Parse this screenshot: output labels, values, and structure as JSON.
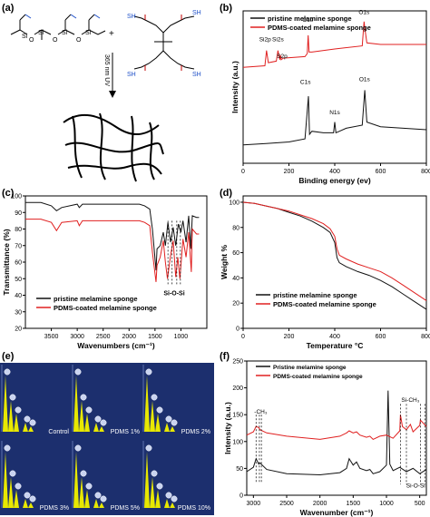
{
  "panels": {
    "a": {
      "label": "(a)",
      "chem": {
        "atoms": [
          "Si",
          "O",
          "Si",
          "O",
          "Si",
          "O",
          "Si"
        ],
        "plus": "+",
        "thiol_groups": [
          "SH",
          "SH",
          "SH",
          "SH"
        ],
        "uv_label": "365 nm UV"
      }
    },
    "b": {
      "label": "(b)"
    },
    "c": {
      "label": "(c)"
    },
    "d": {
      "label": "(d)"
    },
    "e": {
      "label": "(e)",
      "tiles": [
        "Control",
        "PDMS 1%",
        "PDMS 2%",
        "PDMS 3%",
        "PDMS 5%",
        "PDMS 10%"
      ]
    },
    "f": {
      "label": "(f)"
    }
  },
  "colors": {
    "black_series": "#111111",
    "red_series": "#e02020",
    "eds_bg": "#1c2f6e",
    "eds_peak": "#e8e800"
  },
  "chart_data": [
    {
      "id": "b",
      "type": "line",
      "xlabel": "Binding energy (ev)",
      "ylabel": "Intensity (a.u.)",
      "xlim": [
        0,
        800
      ],
      "ylim": [
        0,
        10
      ],
      "xticks": [
        "0",
        "200",
        "400",
        "600",
        "800"
      ],
      "legend": [
        "pristine melamine sponge",
        "PDMS-coated melamine sponge"
      ],
      "annotations": {
        "red": [
          "Si2p",
          "Si2s",
          "S2p",
          "C1s",
          "O1s"
        ],
        "black": [
          "C1s",
          "N1s",
          "O1s"
        ]
      },
      "series": [
        {
          "name": "pristine melamine sponge",
          "color": "#111111",
          "x": [
            0,
            100,
            200,
            270,
            285,
            290,
            300,
            350,
            395,
            400,
            405,
            450,
            520,
            531,
            540,
            600,
            700,
            800
          ],
          "y": [
            1.2,
            1.3,
            1.4,
            1.6,
            4.4,
            1.9,
            2.1,
            2.0,
            2.0,
            2.7,
            2.0,
            2.3,
            2.5,
            4.8,
            2.7,
            2.4,
            2.3,
            2.2
          ]
        },
        {
          "name": "PDMS-coated melamine sponge",
          "color": "#e02020",
          "x": [
            0,
            95,
            102,
            110,
            145,
            152,
            160,
            163,
            166,
            175,
            270,
            280,
            284,
            288,
            300,
            400,
            520,
            528,
            532,
            540,
            600,
            700,
            800
          ],
          "y": [
            6.3,
            6.4,
            7.4,
            6.6,
            6.7,
            7.4,
            6.8,
            7.1,
            6.8,
            6.9,
            7.0,
            7.2,
            8.4,
            7.3,
            7.3,
            7.5,
            7.7,
            9.3,
            8.8,
            7.9,
            7.8,
            7.8,
            7.8
          ]
        }
      ]
    },
    {
      "id": "c",
      "type": "line",
      "xlabel": "Wavenumbers (cm⁻¹)",
      "ylabel": "Transmittance (%)",
      "xlim": [
        4000,
        500
      ],
      "ylim": [
        20,
        100
      ],
      "yticks": [
        "20",
        "30",
        "40",
        "50",
        "60",
        "70",
        "80",
        "90",
        "100"
      ],
      "xticks": [
        "3500",
        "3000",
        "2500",
        "2000",
        "1500",
        "1000"
      ],
      "annotation": "Si-O-Si",
      "legend": [
        "pristine melamine sponge",
        "PDMS-coated melamine sponge"
      ],
      "series": [
        {
          "name": "pristine melamine sponge",
          "color": "#111111",
          "x": [
            4000,
            3700,
            3500,
            3400,
            3300,
            3000,
            2960,
            2900,
            2500,
            2000,
            1800,
            1700,
            1600,
            1550,
            1480,
            1460,
            1400,
            1340,
            1300,
            1250,
            1200,
            1150,
            1100,
            1050,
            1000,
            960,
            900,
            850,
            810,
            780,
            700,
            650
          ],
          "y": [
            96,
            96,
            94,
            91,
            93,
            95,
            93,
            95,
            95,
            95,
            95,
            94,
            92,
            80,
            55,
            68,
            70,
            78,
            70,
            84,
            72,
            81,
            70,
            83,
            78,
            85,
            72,
            88,
            68,
            88,
            87,
            87
          ]
        },
        {
          "name": "PDMS-coated melamine sponge",
          "color": "#e02020",
          "x": [
            4000,
            3700,
            3500,
            3400,
            3300,
            3000,
            2960,
            2900,
            2500,
            2000,
            1800,
            1700,
            1600,
            1550,
            1480,
            1460,
            1400,
            1340,
            1300,
            1260,
            1200,
            1150,
            1100,
            1060,
            1020,
            960,
            900,
            850,
            800,
            780,
            700,
            650
          ],
          "y": [
            86,
            86,
            84,
            79,
            84,
            85,
            82,
            85,
            85,
            85,
            85,
            84,
            82,
            66,
            48,
            58,
            63,
            73,
            60,
            50,
            64,
            73,
            51,
            63,
            50,
            74,
            63,
            78,
            54,
            80,
            77,
            77
          ]
        }
      ]
    },
    {
      "id": "d",
      "type": "line",
      "xlabel": "Temperature °C",
      "ylabel": "Weight %",
      "xlim": [
        0,
        800
      ],
      "ylim": [
        0,
        105
      ],
      "yticks": [
        "0",
        "20",
        "40",
        "60",
        "80",
        "100"
      ],
      "xticks": [
        "0",
        "200",
        "400",
        "600",
        "800"
      ],
      "legend": [
        "pristine   melamine sponge",
        "PDMS-coated melamine sponge"
      ],
      "series": [
        {
          "name": "pristine   melamine sponge",
          "color": "#111111",
          "x": [
            0,
            50,
            100,
            150,
            200,
            250,
            300,
            350,
            380,
            400,
            410,
            420,
            450,
            500,
            550,
            600,
            650,
            700,
            750,
            800
          ],
          "y": [
            100,
            99,
            97,
            95,
            92,
            89,
            85,
            80,
            76,
            68,
            56,
            52,
            49,
            45,
            42,
            38,
            33,
            27,
            21,
            15
          ]
        },
        {
          "name": "PDMS-coated melamine sponge",
          "color": "#e02020",
          "x": [
            0,
            50,
            100,
            150,
            200,
            250,
            300,
            350,
            380,
            400,
            410,
            420,
            450,
            500,
            550,
            600,
            650,
            700,
            750,
            800
          ],
          "y": [
            100,
            99,
            97,
            95,
            93,
            90,
            87,
            83,
            79,
            73,
            63,
            58,
            55,
            51,
            48,
            45,
            40,
            34,
            28,
            22
          ]
        }
      ]
    },
    {
      "id": "f",
      "type": "line",
      "xlabel": "Wavenumber (cm⁻¹)",
      "ylabel": "Intensity (a.u.)",
      "xlim": [
        3100,
        400
      ],
      "ylim": [
        0,
        250
      ],
      "yticks": [
        "0",
        "50",
        "100",
        "150",
        "200",
        "250"
      ],
      "xticks": [
        "3000",
        "2500",
        "2000",
        "1500",
        "1000",
        "500"
      ],
      "annotations": [
        "-CH₃",
        "Si-CH₃",
        "Si-O-Si"
      ],
      "legend": [
        "Pristine melamine sponge",
        "PDMS-coated melamine sponge"
      ],
      "series": [
        {
          "name": "Pristine melamine sponge",
          "color": "#111111",
          "x": [
            3100,
            3000,
            2960,
            2920,
            2900,
            2800,
            2500,
            2000,
            1700,
            1600,
            1560,
            1500,
            1450,
            1400,
            1300,
            1250,
            1200,
            1100,
            1000,
            975,
            950,
            900,
            800,
            700,
            600,
            500,
            400
          ],
          "y": [
            44,
            52,
            68,
            58,
            60,
            48,
            40,
            38,
            42,
            50,
            68,
            56,
            62,
            50,
            46,
            48,
            40,
            44,
            56,
            195,
            58,
            46,
            52,
            44,
            50,
            40,
            48
          ]
        },
        {
          "name": "PDMS-coated melamine sponge",
          "color": "#e02020",
          "x": [
            3100,
            3000,
            2960,
            2920,
            2900,
            2800,
            2500,
            2000,
            1700,
            1600,
            1560,
            1500,
            1450,
            1400,
            1300,
            1250,
            1200,
            1100,
            1000,
            900,
            800,
            790,
            760,
            700,
            640,
            600,
            500,
            490,
            400
          ],
          "y": [
            112,
            118,
            128,
            126,
            122,
            116,
            110,
            104,
            110,
            116,
            120,
            116,
            118,
            112,
            108,
            110,
            104,
            110,
            112,
            106,
            120,
            150,
            128,
            122,
            132,
            118,
            130,
            140,
            128
          ]
        }
      ]
    }
  ]
}
